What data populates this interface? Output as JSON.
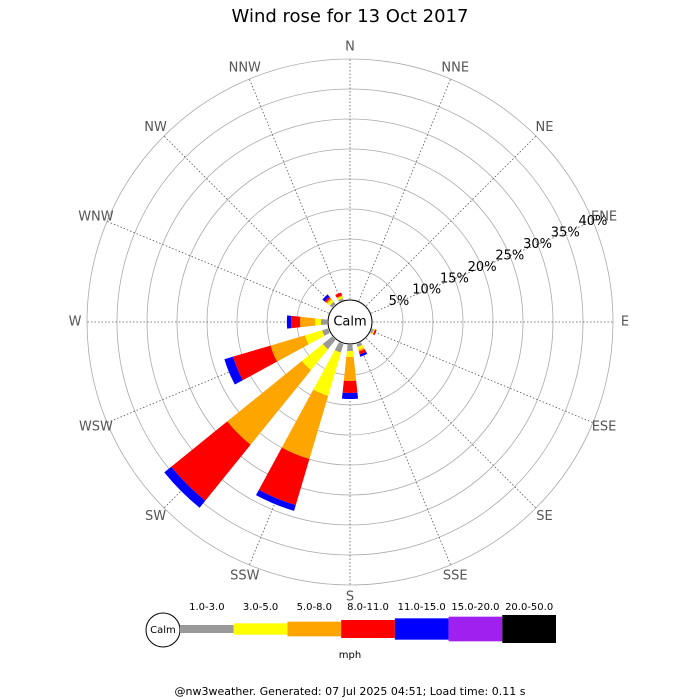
{
  "chart_data": {
    "type": "windrose",
    "title": "Wind rose for 13 Oct 2017",
    "categories": [
      "N",
      "NNE",
      "NE",
      "ENE",
      "E",
      "ESE",
      "SE",
      "SSE",
      "S",
      "SSW",
      "SW",
      "WSW",
      "W",
      "WNW",
      "NW",
      "NNW"
    ],
    "calm_label": "Calm",
    "rlim": [
      0,
      40
    ],
    "rticks": [
      {
        "value": 5,
        "label": "5%"
      },
      {
        "value": 10,
        "label": "10%"
      },
      {
        "value": 15,
        "label": "15%"
      },
      {
        "value": 20,
        "label": "20%"
      },
      {
        "value": 25,
        "label": "25%"
      },
      {
        "value": 30,
        "label": "30%"
      },
      {
        "value": 35,
        "label": "35%"
      },
      {
        "value": 40,
        "label": "40%"
      }
    ],
    "series": [
      {
        "name": "1.0-3.0",
        "color": "#999999",
        "values": [
          0,
          0,
          0,
          0,
          0,
          0.3,
          0,
          0.5,
          1,
          1.5,
          2,
          1,
          1,
          0,
          0.5,
          0.3
        ]
      },
      {
        "name": "3.0-5.0",
        "color": "#ffff00",
        "values": [
          0,
          0,
          0,
          0,
          0,
          0.2,
          0,
          0.5,
          1,
          7.5,
          4.5,
          3,
          1,
          0,
          0.5,
          0.3
        ]
      },
      {
        "name": "5.0-8.0",
        "color": "#ffa500",
        "values": [
          0,
          0,
          0,
          0,
          0,
          0,
          0,
          0.3,
          4,
          11,
          16,
          6,
          2.5,
          0,
          0.3,
          0.2
        ]
      },
      {
        "name": "8.0-11.0",
        "color": "#ff0000",
        "values": [
          0,
          0,
          0,
          0,
          0,
          0.3,
          0,
          0.5,
          2,
          8,
          12,
          6.5,
          1.5,
          0,
          0.3,
          0.5
        ]
      },
      {
        "name": "11.0-15.0",
        "color": "#0000ff",
        "values": [
          0,
          0,
          0,
          0,
          0,
          0,
          0,
          0.4,
          1,
          1,
          1.5,
          1.5,
          0.7,
          0,
          0.5,
          0
        ]
      },
      {
        "name": "15.0-20.0",
        "color": "#a020f0",
        "values": [
          0,
          0,
          0,
          0,
          0,
          0,
          0,
          0,
          0,
          0,
          0,
          0,
          0,
          0,
          0,
          0
        ]
      },
      {
        "name": "20.0-50.0",
        "color": "#000000",
        "values": [
          0,
          0,
          0,
          0,
          0,
          0,
          0,
          0,
          0,
          0,
          0,
          0,
          0,
          0,
          0,
          0
        ]
      }
    ],
    "units": "mph",
    "footer": "@nw3weather. Generated: 07 Jul 2025 04:51; Load time: 0.11 s"
  }
}
